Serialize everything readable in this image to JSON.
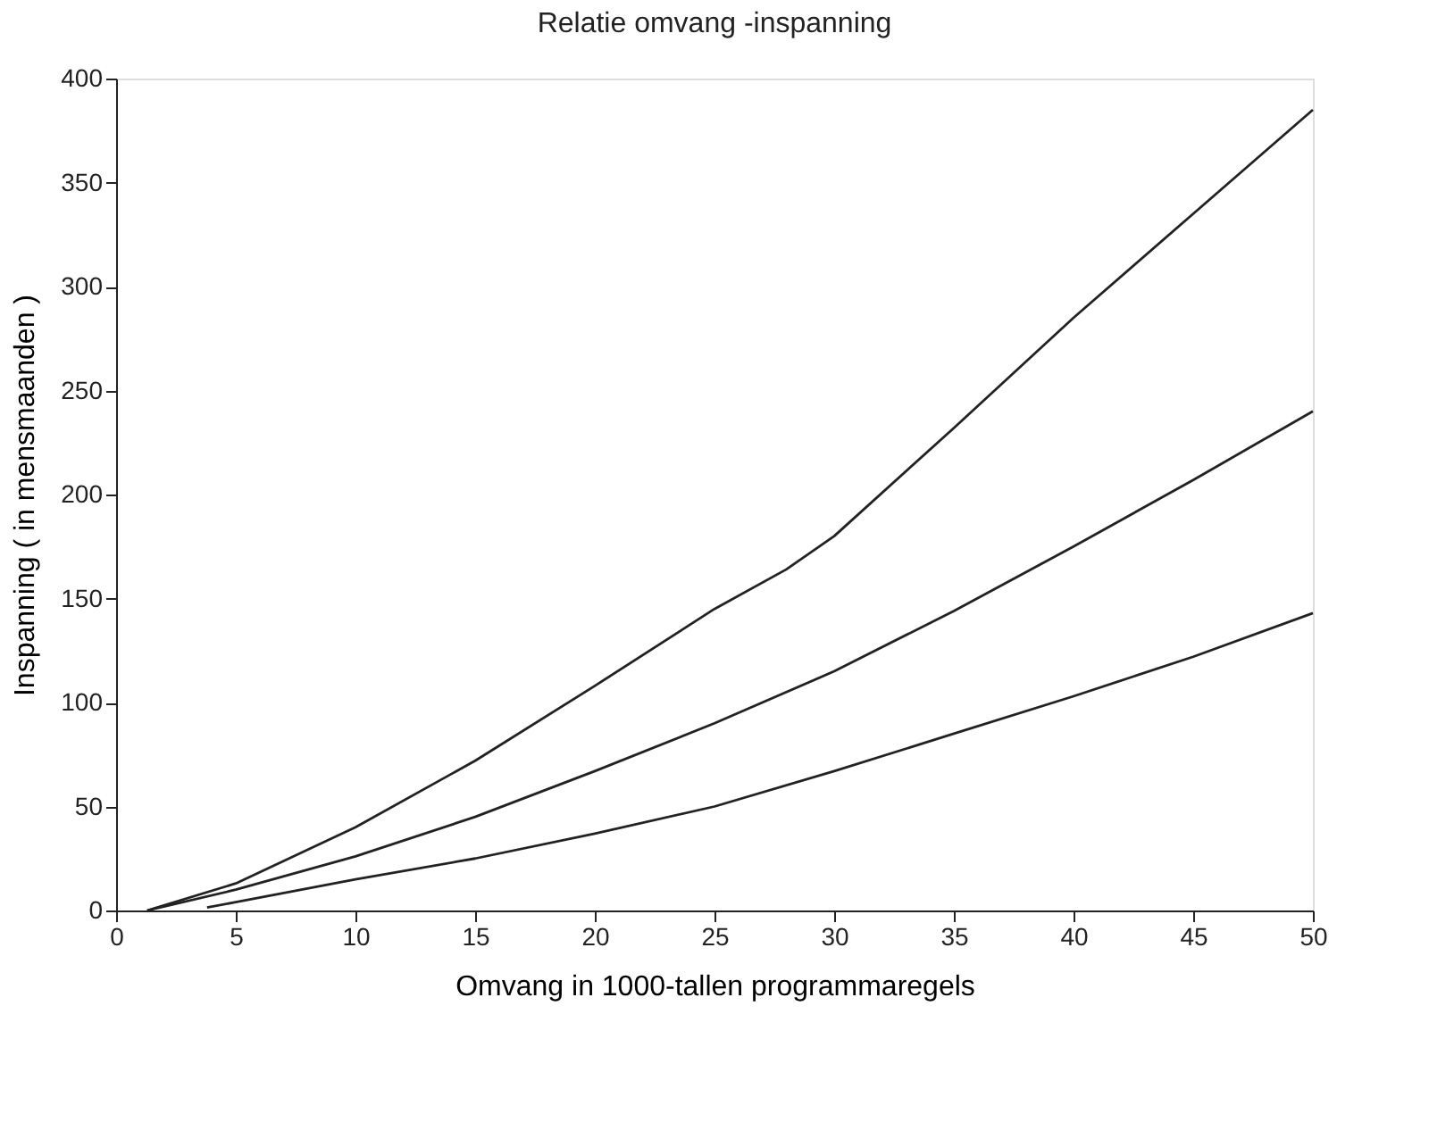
{
  "chart_data": {
    "type": "line",
    "title": "Relatie omvang -inspanning",
    "xlabel": "Omvang in 1000-tallen programmaregels",
    "ylabel": "Inspanning ( in mensmaanden )",
    "series": [
      {
        "color": "#222222",
        "x": [
          1.3,
          5,
          10,
          15,
          20,
          25,
          28,
          30,
          35,
          40,
          45,
          50
        ],
        "values": [
          0,
          13,
          40,
          72,
          108,
          145,
          164,
          180,
          232,
          285,
          335,
          385
        ]
      },
      {
        "color": "#222222",
        "x": [
          1.3,
          5,
          10,
          15,
          20,
          25,
          30,
          35,
          40,
          45,
          50
        ],
        "values": [
          0,
          10,
          26,
          45,
          67,
          90,
          115,
          144,
          175,
          207,
          240
        ]
      },
      {
        "color": "#222222",
        "x": [
          3.8,
          5,
          10,
          15,
          20,
          25,
          30,
          35,
          40,
          45,
          50
        ],
        "values": [
          1.5,
          4,
          15,
          25,
          37,
          50,
          67,
          85,
          103,
          122,
          143
        ]
      }
    ],
    "xlim": [
      0,
      50
    ],
    "xticks": [
      0,
      5,
      10,
      15,
      20,
      25,
      30,
      35,
      40,
      45,
      50
    ],
    "ylim": [
      0,
      400
    ],
    "yticks": [
      0,
      50,
      100,
      150,
      200,
      250,
      300,
      350,
      400
    ],
    "grid": false,
    "legend": false,
    "marker": "none",
    "line_style": "solid"
  }
}
